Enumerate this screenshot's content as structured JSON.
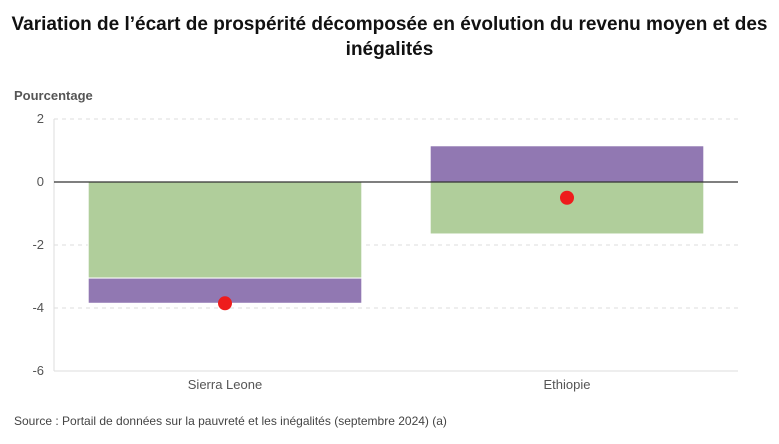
{
  "title": "Variation de l’écart de prospérité décomposée en évolution du revenu moyen et des inégalités",
  "source": "Source : Portail de données sur la pauvreté et les inégalités (septembre 2024) (a)",
  "colors": {
    "green": "#b0ce9b",
    "purple": "#9178b2",
    "dot": "#ee1c1c",
    "grid": "#dddddd",
    "zero": "#333333"
  },
  "chart_data": {
    "type": "bar",
    "ylabel": "Pourcentage",
    "ylim": [
      -6,
      2
    ],
    "yticks": [
      2,
      0,
      -2,
      -4,
      -6
    ],
    "grid": true,
    "categories": [
      "Sierra Leone",
      "Ethiopie"
    ],
    "series": [
      {
        "values": [
          -3.05,
          -1.65
        ],
        "color": "#b0ce9b"
      },
      {
        "values": [
          -0.8,
          1.15
        ],
        "color": "#9178b2"
      }
    ],
    "total": {
      "values": [
        -3.85,
        -0.5
      ],
      "color": "#ee1c1c"
    }
  }
}
